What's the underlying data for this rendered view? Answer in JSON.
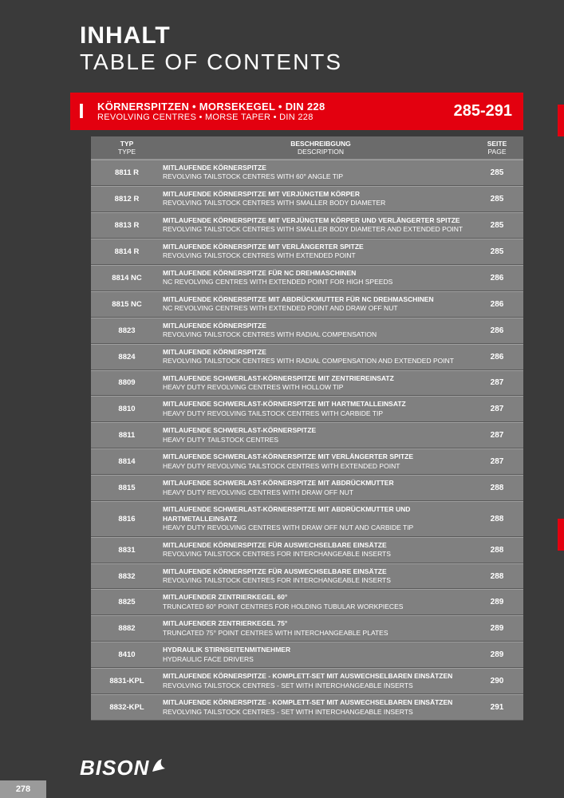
{
  "title_de": "INHALT",
  "title_en": "TABLE OF CONTENTS",
  "section": {
    "letter": "I",
    "title_de": "KÖRNERSPITZEN • MORSEKEGEL • DIN 228",
    "title_en": "REVOLVING CENTRES • MORSE TAPER • DIN 228",
    "pages": "285-291"
  },
  "headers": {
    "type_de": "TYP",
    "type_en": "TYPE",
    "desc_de": "BESCHREIBGUNG",
    "desc_en": "DESCRIPTION",
    "page_de": "SEITE",
    "page_en": "PAGE"
  },
  "rows": [
    {
      "type": "8811 R",
      "de": "MITLAUFENDE KÖRNERSPITZE",
      "en": "REVOLVING TAILSTOCK CENTRES WITH 60° ANGLE TIP",
      "page": "285"
    },
    {
      "type": "8812 R",
      "de": "MITLAUFENDE KÖRNERSPITZE MIT VERJÜNGTEM KÖRPER",
      "en": "REVOLVING TAILSTOCK CENTRES WITH SMALLER BODY DIAMETER",
      "page": "285"
    },
    {
      "type": "8813 R",
      "de": "MITLAUFENDE KÖRNERSPITZE MIT VERJÜNGTEM KÖRPER UND VERLÄNGERTER SPITZE",
      "en": "REVOLVING TAILSTOCK CENTRES WITH SMALLER BODY DIAMETER AND EXTENDED POINT",
      "page": "285"
    },
    {
      "type": "8814 R",
      "de": "MITLAUFENDE KÖRNERSPITZE MIT VERLÄNGERTER SPITZE",
      "en": "REVOLVING TAILSTOCK CENTRES WITH EXTENDED POINT",
      "page": "285"
    },
    {
      "type": "8814 NC",
      "de": "MITLAUFENDE KÖRNERSPITZE FÜR NC DREHMASCHINEN",
      "en": "NC REVOLVING CENTRES WITH EXTENDED POINT FOR HIGH SPEEDS",
      "page": "286"
    },
    {
      "type": "8815 NC",
      "de": "MITLAUFENDE KÖRNERSPITZE MIT ABDRÜCKMUTTER FÜR NC DREHMASCHINEN",
      "en": "NC REVOLVING CENTRES WITH EXTENDED POINT AND DRAW OFF NUT",
      "page": "286"
    },
    {
      "type": "8823",
      "de": "MITLAUFENDE KÖRNERSPITZE",
      "en": "REVOLVING TAILSTOCK CENTRES WITH RADIAL COMPENSATION",
      "page": "286"
    },
    {
      "type": "8824",
      "de": "MITLAUFENDE KÖRNERSPITZE",
      "en": "REVOLVING TAILSTOCK CENTRES WITH RADIAL COMPENSATION AND EXTENDED POINT",
      "page": "286"
    },
    {
      "type": "8809",
      "de": "MITLAUFENDE SCHWERLAST-KÖRNERSPITZE MIT ZENTRIEREINSATZ",
      "en": "HEAVY DUTY REVOLVING CENTRES WITH HOLLOW TIP",
      "page": "287"
    },
    {
      "type": "8810",
      "de": "MITLAUFENDE SCHWERLAST-KÖRNERSPITZE MIT HARTMETALLEINSATZ",
      "en": "HEAVY DUTY REVOLVING TAILSTOCK CENTRES WITH CARBIDE TIP",
      "page": "287"
    },
    {
      "type": "8811",
      "de": "MITLAUFENDE SCHWERLAST-KÖRNERSPITZE",
      "en": "HEAVY DUTY TAILSTOCK CENTRES",
      "page": "287"
    },
    {
      "type": "8814",
      "de": "MITLAUFENDE SCHWERLAST-KÖRNERSPITZE MIT VERLÄNGERTER SPITZE",
      "en": "HEAVY DUTY REVOLVING TAILSTOCK CENTRES WITH EXTENDED POINT",
      "page": "287"
    },
    {
      "type": "8815",
      "de": "MITLAUFENDE SCHWERLAST-KÖRNERSPITZE MIT ABDRÜCKMUTTER",
      "en": "HEAVY DUTY REVOLVING  CENTRES WITH DRAW OFF NUT",
      "page": "288"
    },
    {
      "type": "8816",
      "de": "MITLAUFENDE SCHWERLAST-KÖRNERSPITZE MIT ABDRÜCKMUTTER UND HARTMETALLEINSATZ",
      "en": "HEAVY DUTY REVOLVING CENTRES WITH DRAW OFF NUT AND CARBIDE TIP",
      "page": "288"
    },
    {
      "type": "8831",
      "de": "MITLAUFENDE KÖRNERSPITZE FÜR AUSWECHSELBARE EINSÄTZE",
      "en": "REVOLVING TAILSTOCK CENTRES FOR INTERCHANGEABLE INSERTS",
      "page": "288"
    },
    {
      "type": "8832",
      "de": "MITLAUFENDE KÖRNERSPITZE FÜR AUSWECHSELBARE EINSÄTZE",
      "en": "REVOLVING TAILSTOCK CENTRES FOR INTERCHANGEABLE INSERTS",
      "page": "288"
    },
    {
      "type": "8825",
      "de": "MITLAUFENDER ZENTRIERKEGEL 60°",
      "en": "TRUNCATED 60° POINT CENTRES FOR HOLDING TUBULAR WORKPIECES",
      "page": "289"
    },
    {
      "type": "8882",
      "de": "MITLAUFENDER ZENTRIERKEGEL 75°",
      "en": "TRUNCATED 75° POINT CENTRES WITH INTERCHANGEABLE PLATES",
      "page": "289"
    },
    {
      "type": "8410",
      "de": "HYDRAULIK STIRNSEITENMITNEHMER",
      "en": "HYDRAULIC FACE DRIVERS",
      "page": "289"
    },
    {
      "type": "8831-KPL",
      "de": "MITLAUFENDE KÖRNERSPITZE - KOMPLETT-SET MIT AUSWECHSELBAREN EINSÄTZEN",
      "en": "REVOLVING TAILSTOCK CENTRES - SET WITH INTERCHANGEABLE INSERTS",
      "page": "290"
    },
    {
      "type": "8832-KPL",
      "de": "MITLAUFENDE KÖRNERSPITZE - KOMPLETT-SET MIT AUSWECHSELBAREN EINSÄTZEN",
      "en": "REVOLVING TAILSTOCK CENTRES - SET WITH INTERCHANGEABLE INSERTS",
      "page": "291"
    }
  ],
  "logo": "BISON",
  "page_number": "278"
}
